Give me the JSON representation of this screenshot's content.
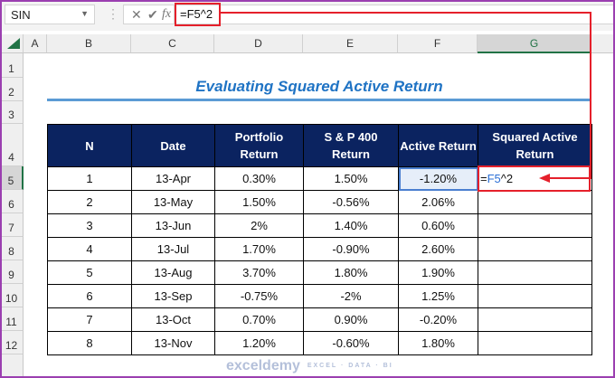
{
  "formula_bar": {
    "name_box": "SIN",
    "formula": "=F5^2",
    "cancel_icon": "x-icon",
    "enter_icon": "check-icon",
    "fx_label": "fx"
  },
  "columns": [
    "A",
    "B",
    "C",
    "D",
    "E",
    "F",
    "G"
  ],
  "rows": [
    "1",
    "2",
    "3",
    "4",
    "5",
    "6",
    "7",
    "8",
    "9",
    "10",
    "11",
    "12"
  ],
  "sheet": {
    "title": "Evaluating Squared Active Return",
    "headers": [
      "N",
      "Date",
      "Portfolio Return",
      "S & P 400 Return",
      "Active Return",
      "Squared Active Return"
    ],
    "data": [
      [
        "1",
        "13-Apr",
        "0.30%",
        "1.50%",
        "-1.20%",
        ""
      ],
      [
        "2",
        "13-May",
        "1.50%",
        "-0.56%",
        "2.06%",
        ""
      ],
      [
        "3",
        "13-Jun",
        "2%",
        "1.40%",
        "0.60%",
        ""
      ],
      [
        "4",
        "13-Jul",
        "1.70%",
        "-0.90%",
        "2.60%",
        ""
      ],
      [
        "5",
        "13-Aug",
        "3.70%",
        "1.80%",
        "1.90%",
        ""
      ],
      [
        "6",
        "13-Sep",
        "-0.75%",
        "-2%",
        "1.25%",
        ""
      ],
      [
        "7",
        "13-Oct",
        "0.70%",
        "0.90%",
        "-0.20%",
        ""
      ],
      [
        "8",
        "13-Nov",
        "1.20%",
        "-0.60%",
        "1.80%",
        ""
      ]
    ],
    "edit_cell": {
      "prefix": "=",
      "ref": "F5",
      "suffix": "^2"
    }
  },
  "watermark": {
    "name": "exceldemy",
    "tagline": "EXCEL · DATA · BI"
  },
  "colors": {
    "header_bg": "#0b2360",
    "title": "#1f73c4",
    "highlight": "#e5202b",
    "excel_green": "#217346"
  }
}
